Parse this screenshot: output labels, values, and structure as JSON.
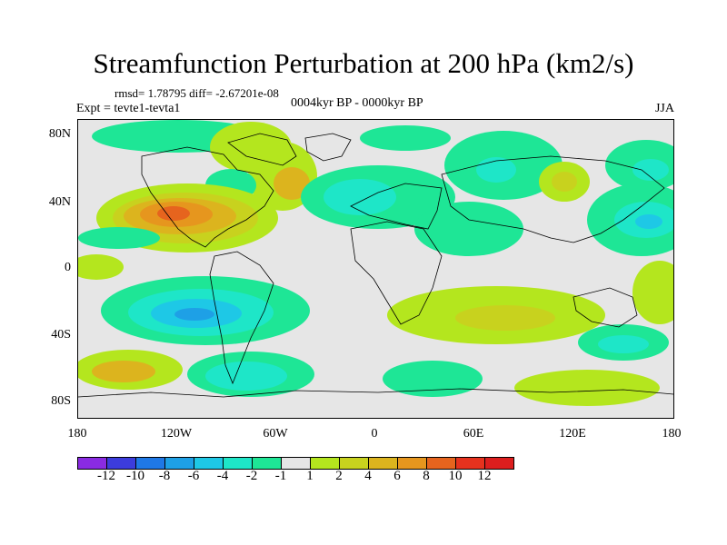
{
  "title": "Streamfunction Perturbation at 200 hPa (km2/s)",
  "stats_line": "rmsd= 1.78795 diff= -2.67201e-08",
  "experiment": "Expt = tevte1-tevta1",
  "period": "0004kyr BP - 0000kyr BP",
  "season": "JJA",
  "y_ticks": [
    "80N",
    "40N",
    "0",
    "40S",
    "80S"
  ],
  "x_ticks": [
    "180",
    "120W",
    "60W",
    "0",
    "60E",
    "120E",
    "180"
  ],
  "colorbar": {
    "colors": [
      "#8a2be2",
      "#3c3cdc",
      "#1f78e6",
      "#1ea0e6",
      "#1ec8e6",
      "#1ee6c8",
      "#1ee696",
      "#e6e6e6",
      "#b4e61e",
      "#c8d21e",
      "#dcb41e",
      "#e6961e",
      "#e6641e",
      "#e6321e",
      "#dc1e1e"
    ],
    "labels": [
      "-12",
      "-10",
      "-8",
      "-6",
      "-4",
      "-2",
      "-1",
      "1",
      "2",
      "4",
      "6",
      "8",
      "10",
      "12"
    ]
  },
  "fill_colors": {
    "neg1": "#1ee696",
    "neg2": "#1ee6c8",
    "neg3": "#1ec8e6",
    "neg4": "#1ea0e6",
    "pos1": "#b4e61e",
    "pos2": "#c8d21e",
    "pos3": "#dcb41e",
    "pos4": "#e6961e",
    "pos5": "#e6641e",
    "background": "#e6e6e6"
  }
}
